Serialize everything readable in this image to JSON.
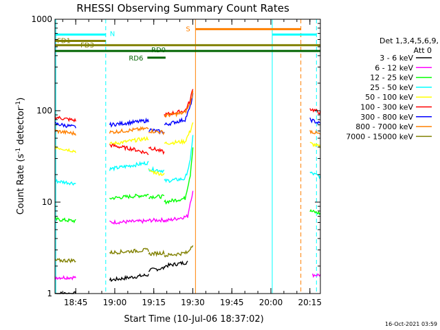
{
  "chart_data": {
    "type": "line",
    "title": "RHESSI Observing Summary Count Rates",
    "xlabel": "Start Time (10-Jul-06 18:37:02)",
    "ylabel_main": "Count Rate (s",
    "ylabel_sup1": "-1",
    "ylabel_mid": " detector",
    "ylabel_sup2": "-1",
    "ylabel_end": ")",
    "yscale": "log",
    "ylim": [
      1,
      1000
    ],
    "xlim_minutes": [
      0,
      102
    ],
    "x_ticks": [
      {
        "label": "18:45",
        "t": 7.97
      },
      {
        "label": "19:00",
        "t": 22.97
      },
      {
        "label": "19:15",
        "t": 37.97
      },
      {
        "label": "19:30",
        "t": 52.97
      },
      {
        "label": "19:45",
        "t": 67.97
      },
      {
        "label": "20:00",
        "t": 82.97
      },
      {
        "label": "20:15",
        "t": 97.97
      }
    ],
    "y_ticks": [
      {
        "label": "1",
        "v": 1
      },
      {
        "label": "10",
        "v": 10
      },
      {
        "label": "100",
        "v": 100
      },
      {
        "label": "1000",
        "v": 1000
      }
    ],
    "legend_header": "Det 1,3,4,5,6,9,",
    "legend_header2": "Att 0",
    "series": [
      {
        "name": "3 - 6 keV",
        "color": "#000000",
        "segments": [
          [
            [
              0,
              1
            ],
            [
              8,
              1
            ]
          ],
          [
            [
              21,
              1.4
            ],
            [
              36,
              1.6
            ]
          ],
          [
            [
              36,
              1.8
            ],
            [
              42,
              1.9
            ]
          ],
          [
            [
              42,
              2.0
            ],
            [
              51,
              2.2
            ]
          ]
        ]
      },
      {
        "name": "6 - 12 keV",
        "color": "#ff00ff",
        "segments": [
          [
            [
              0,
              1.5
            ],
            [
              8,
              1.5
            ]
          ],
          [
            [
              21,
              6.0
            ],
            [
              36,
              6.2
            ]
          ],
          [
            [
              36,
              6.3
            ],
            [
              42,
              6.4
            ]
          ],
          [
            [
              42,
              6.2
            ],
            [
              51,
              7.0
            ],
            [
              52,
              10
            ],
            [
              53,
              13
            ]
          ],
          [
            [
              99,
              1.6
            ],
            [
              102,
              1.6
            ]
          ]
        ]
      },
      {
        "name": "12 - 25 keV",
        "color": "#00ff00",
        "segments": [
          [
            [
              0,
              6.5
            ],
            [
              8,
              6.2
            ]
          ],
          [
            [
              21,
              11
            ],
            [
              36,
              12
            ]
          ],
          [
            [
              36,
              11.5
            ],
            [
              42,
              11.5
            ]
          ],
          [
            [
              42,
              10
            ],
            [
              50,
              11
            ],
            [
              52,
              20
            ],
            [
              53,
              40
            ]
          ],
          [
            [
              98,
              8.0
            ],
            [
              102,
              7.5
            ]
          ]
        ]
      },
      {
        "name": "25 - 50 keV",
        "color": "#00ffff",
        "segments": [
          [
            [
              0,
              17
            ],
            [
              8,
              16
            ]
          ],
          [
            [
              21,
              23
            ],
            [
              36,
              27
            ]
          ],
          [
            [
              36,
              23
            ],
            [
              42,
              22
            ]
          ],
          [
            [
              42,
              17
            ],
            [
              50,
              18
            ],
            [
              52,
              28
            ],
            [
              53,
              55
            ]
          ],
          [
            [
              98,
              21
            ],
            [
              102,
              19
            ]
          ]
        ]
      },
      {
        "name": "50 - 100 keV",
        "color": "#ffff00",
        "segments": [
          [
            [
              0,
              40
            ],
            [
              8,
              36
            ]
          ],
          [
            [
              21,
              43
            ],
            [
              36,
              50
            ]
          ],
          [
            [
              36,
              22
            ],
            [
              42,
              20
            ]
          ],
          [
            [
              42,
              44
            ],
            [
              50,
              46
            ],
            [
              52,
              60
            ],
            [
              53,
              75
            ]
          ],
          [
            [
              98,
              44
            ],
            [
              102,
              40
            ]
          ]
        ]
      },
      {
        "name": "100 - 300 keV",
        "color": "#ff0000",
        "segments": [
          [
            [
              0,
              85
            ],
            [
              8,
              78
            ]
          ],
          [
            [
              21,
              42
            ],
            [
              30,
              38
            ],
            [
              36,
              34
            ]
          ],
          [
            [
              36,
              40
            ],
            [
              42,
              35
            ]
          ],
          [
            [
              42,
              90
            ],
            [
              50,
              100
            ],
            [
              52,
              130
            ],
            [
              53,
              180
            ]
          ],
          [
            [
              98,
              105
            ],
            [
              102,
              95
            ]
          ]
        ]
      },
      {
        "name": "300 - 800 keV",
        "color": "#0000ff",
        "segments": [
          [
            [
              0,
              72
            ],
            [
              8,
              66
            ]
          ],
          [
            [
              21,
              70
            ],
            [
              36,
              78
            ]
          ],
          [
            [
              36,
              62
            ],
            [
              42,
              58
            ]
          ],
          [
            [
              42,
              70
            ],
            [
              50,
              80
            ],
            [
              52,
              110
            ],
            [
              53,
              150
            ]
          ],
          [
            [
              98,
              80
            ],
            [
              102,
              72
            ]
          ]
        ]
      },
      {
        "name": "800 - 7000 keV",
        "color": "#ff8000",
        "segments": [
          [
            [
              0,
              60
            ],
            [
              8,
              56
            ]
          ],
          [
            [
              21,
              58
            ],
            [
              36,
              64
            ]
          ],
          [
            [
              36,
              60
            ],
            [
              42,
              58
            ]
          ],
          [
            [
              42,
              88
            ],
            [
              50,
              95
            ],
            [
              52,
              120
            ],
            [
              53,
              160
            ]
          ],
          [
            [
              98,
              60
            ],
            [
              102,
              55
            ]
          ]
        ]
      },
      {
        "name": "7000 - 15000 keV",
        "color": "#808000",
        "segments": [
          [
            [
              0,
              2.3
            ],
            [
              8,
              2.3
            ]
          ],
          [
            [
              21,
              2.8
            ],
            [
              36,
              3.0
            ]
          ],
          [
            [
              36,
              2.7
            ],
            [
              42,
              2.8
            ]
          ],
          [
            [
              42,
              2.6
            ],
            [
              51,
              2.8
            ],
            [
              53,
              3.5
            ]
          ]
        ]
      }
    ],
    "state_bars": [
      {
        "label": "N",
        "color": "#00ffff",
        "level_value": 680,
        "t0": 0,
        "t1": 19.5,
        "label_at": "end"
      },
      {
        "label": "N",
        "color": "#00ffff",
        "level_value": 680,
        "t0": 83.5,
        "t1": 100.5,
        "label_at": "none"
      },
      {
        "label": "S",
        "color": "#ff8000",
        "level_value": 780,
        "t0": 54,
        "t1": 94.5,
        "label_at": "start"
      },
      {
        "label": "FD1",
        "color": "#808000",
        "level_value": 580,
        "t0": 0,
        "t1": 19.5,
        "label_at": "start"
      },
      {
        "label": "FD3",
        "color": "#808000",
        "level_value": 520,
        "t0": 0,
        "t1": 102,
        "label_at": "start-offset"
      },
      {
        "label": "RD0",
        "color": "#006400",
        "level_value": 450,
        "t0": 0,
        "t1": 102,
        "label_at": "middle"
      },
      {
        "label": "RD6",
        "color": "#006400",
        "level_value": 380,
        "t0": 35.5,
        "t1": 42.5,
        "label_at": "before"
      }
    ],
    "vlines": [
      {
        "t": 19.5,
        "color": "#00ffff",
        "style": "dashed"
      },
      {
        "t": 54,
        "color": "#ff8000",
        "style": "solid"
      },
      {
        "t": 83.5,
        "color": "#00ffff",
        "style": "solid"
      },
      {
        "t": 94.5,
        "color": "#ff8000",
        "style": "dashed"
      },
      {
        "t": 100.5,
        "color": "#00ffff",
        "style": "dashed"
      },
      {
        "t": 0.3,
        "color": "#00ffff",
        "style": "solid"
      }
    ],
    "grid": false,
    "legend_position": "right"
  },
  "timestamp": "16-Oct-2021 03:59"
}
